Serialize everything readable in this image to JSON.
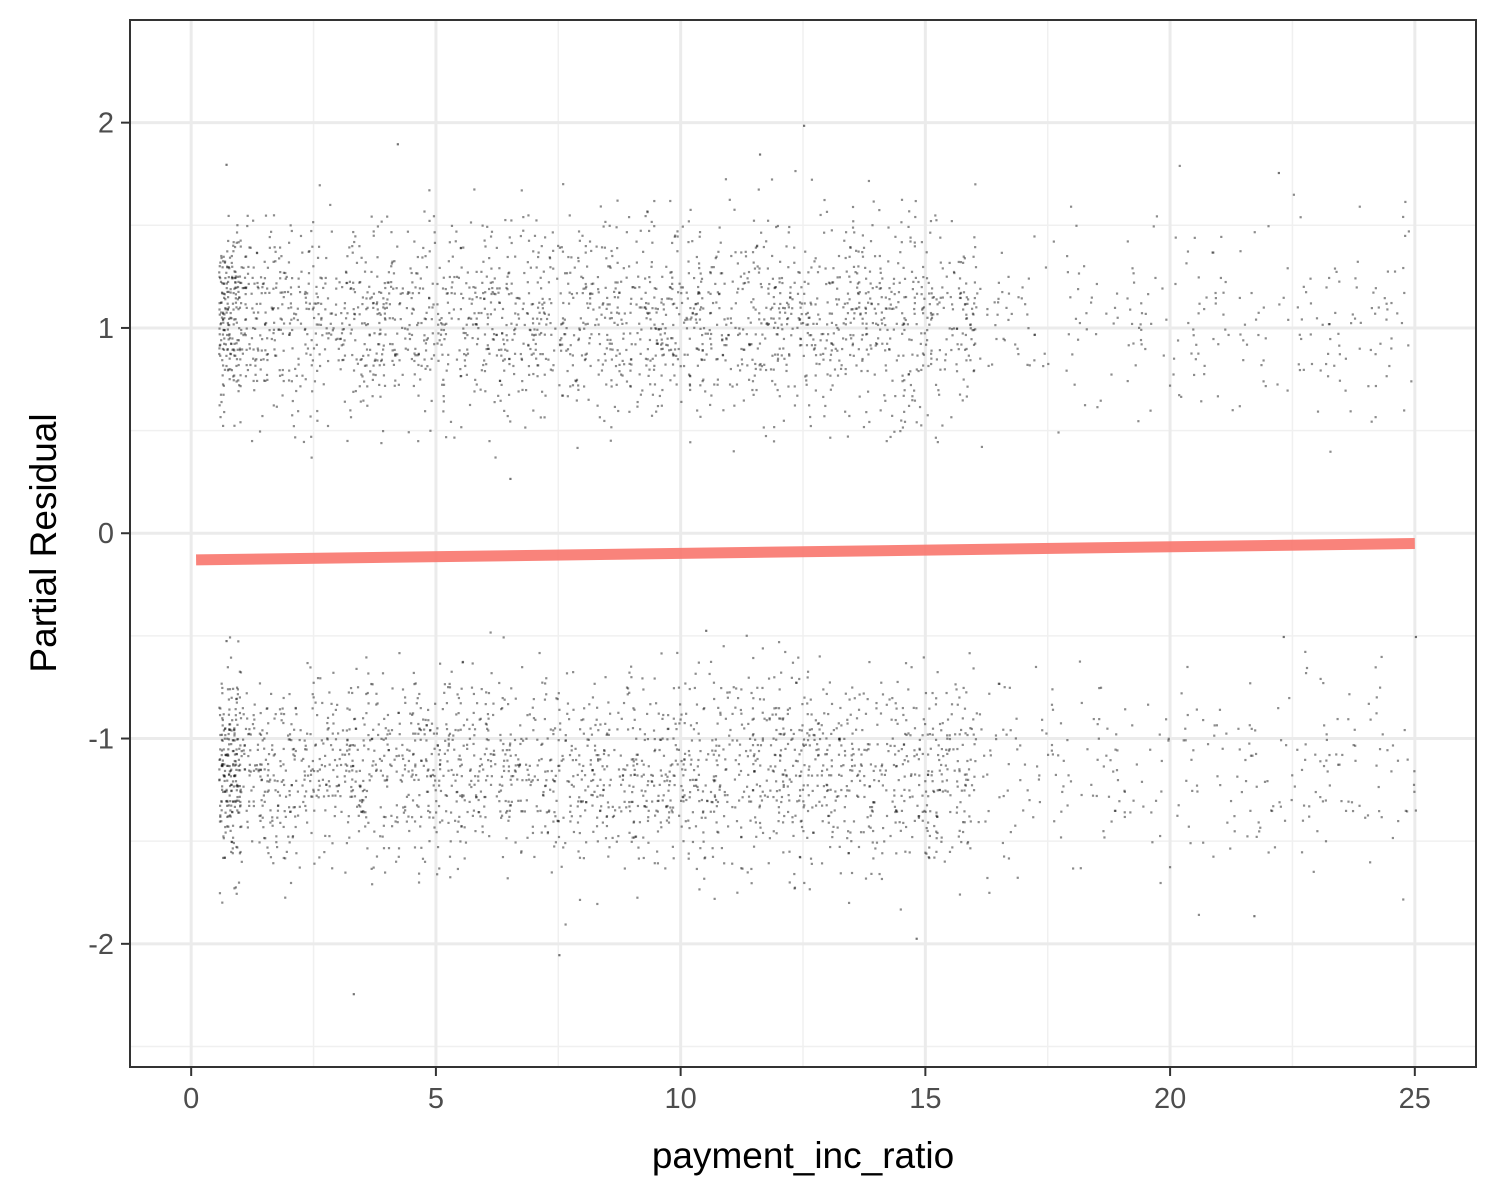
{
  "chart_data": {
    "type": "scatter",
    "title": "",
    "xlabel": "payment_inc_ratio",
    "ylabel": "Partial Residual",
    "xlim": [
      -1.25,
      26.25
    ],
    "ylim": [
      -2.6,
      2.5
    ],
    "x_ticks": [
      0,
      5,
      10,
      15,
      20,
      25
    ],
    "x_tick_labels": [
      "0",
      "5",
      "10",
      "15",
      "20",
      "25"
    ],
    "y_ticks": [
      -2,
      -1,
      0,
      1,
      2
    ],
    "y_tick_labels": [
      "-2",
      "-1",
      "0",
      "1",
      "2"
    ],
    "grid": true,
    "legend": "none",
    "series": [
      {
        "kind": "points",
        "color": "#000000",
        "upper_band": {
          "y_center": 1.05,
          "y_range": [
            0.27,
            1.99
          ],
          "x_range": [
            0.1,
            25.0
          ]
        },
        "lower_band": {
          "y_center": -1.15,
          "y_range": [
            -2.24,
            -0.47
          ],
          "x_range": [
            0.1,
            25.0
          ]
        },
        "sample_points": [
          [
            4.2,
            1.9
          ],
          [
            12.5,
            1.99
          ],
          [
            11.6,
            1.85
          ],
          [
            0.7,
            1.8
          ],
          [
            22.2,
            1.76
          ],
          [
            3.3,
            -2.24
          ],
          [
            7.5,
            -2.05
          ],
          [
            14.8,
            -1.97
          ],
          [
            21.7,
            -1.86
          ],
          [
            10.5,
            -0.47
          ],
          [
            22.3,
            -0.5
          ],
          [
            25.0,
            -0.5
          ],
          [
            0.7,
            -0.52
          ],
          [
            6.5,
            0.27
          ]
        ]
      },
      {
        "kind": "fit-line",
        "color": "#f8766d",
        "x": [
          0.1,
          25.0
        ],
        "y": [
          -0.13,
          -0.05
        ]
      }
    ]
  }
}
